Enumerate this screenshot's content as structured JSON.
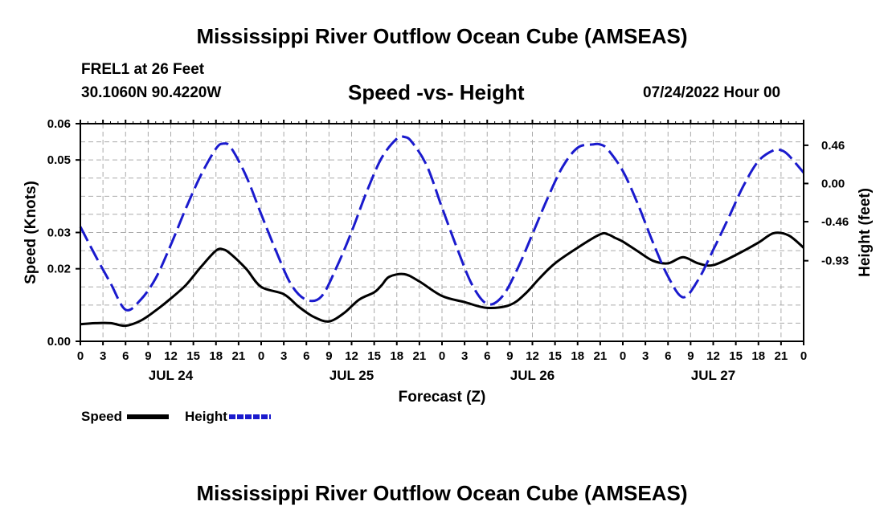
{
  "header": {
    "title": "Mississippi River Outflow Ocean Cube (AMSEAS)",
    "station": "FREL1 at 26 Feet",
    "coords": "30.1060N  90.4220W",
    "subtitle": "Speed -vs- Height",
    "datetime": "07/24/2022 Hour 00",
    "bottom_title": "Mississippi River Outflow Ocean Cube (AMSEAS)"
  },
  "legend": {
    "speed_label": "Speed",
    "height_label": "Height"
  },
  "colors": {
    "speed": "#000000",
    "height": "#1a1acd",
    "grid": "#aaaaaa"
  },
  "chart_data": {
    "type": "line",
    "title": "Speed -vs- Height",
    "xlabel": "Forecast (Z)",
    "ylabel": "Speed (Knots)",
    "y2label": "Height (feet)",
    "x_range": [
      0,
      96
    ],
    "xticks": [
      0,
      3,
      6,
      9,
      12,
      15,
      18,
      21,
      24,
      27,
      30,
      33,
      36,
      39,
      42,
      45,
      48,
      51,
      54,
      57,
      60,
      63,
      66,
      69,
      72,
      75,
      78,
      81,
      84,
      87,
      90,
      93,
      96
    ],
    "xtick_labels": [
      "0",
      "3",
      "6",
      "9",
      "12",
      "15",
      "18",
      "21",
      "0",
      "3",
      "6",
      "9",
      "12",
      "15",
      "18",
      "21",
      "0",
      "3",
      "6",
      "9",
      "12",
      "15",
      "18",
      "21",
      "0",
      "3",
      "6",
      "9",
      "12",
      "15",
      "18",
      "21",
      "0"
    ],
    "day_labels": [
      {
        "label": "JUL 24",
        "x": 12
      },
      {
        "label": "JUL 25",
        "x": 36
      },
      {
        "label": "JUL 26",
        "x": 60
      },
      {
        "label": "JUL 27",
        "x": 84
      }
    ],
    "ylim": [
      0,
      0.06
    ],
    "yticks": [
      0.0,
      0.02,
      0.03,
      0.05,
      0.06
    ],
    "ytick_labels": [
      "0.00",
      "0.02",
      "0.03",
      "0.05",
      "0.06"
    ],
    "ylim2": [
      -1.9,
      0.72
    ],
    "yticks2": [
      -0.93,
      -0.46,
      0.0,
      0.46
    ],
    "ytick2_labels": [
      "-0.93",
      "-0.46",
      "0.00",
      "0.46"
    ],
    "series": [
      {
        "name": "Speed",
        "axis": "left",
        "style": "solid",
        "x": [
          0,
          2,
          4,
          6,
          8,
          10,
          12,
          14,
          16,
          18,
          19,
          20,
          22,
          24,
          27,
          29,
          31,
          33,
          35,
          37,
          39,
          40,
          41,
          43,
          45,
          48,
          51,
          54,
          57,
          59,
          61,
          63,
          66,
          69,
          70,
          71,
          72,
          74,
          76,
          78,
          80,
          82,
          84,
          87,
          90,
          92,
          94,
          96
        ],
        "values": [
          0.0047,
          0.005,
          0.005,
          0.0043,
          0.0057,
          0.0085,
          0.0118,
          0.0155,
          0.0205,
          0.025,
          0.0253,
          0.024,
          0.02,
          0.015,
          0.013,
          0.0095,
          0.0067,
          0.0055,
          0.0078,
          0.0115,
          0.0135,
          0.0155,
          0.0178,
          0.0185,
          0.0165,
          0.0125,
          0.0108,
          0.0092,
          0.01,
          0.013,
          0.0175,
          0.0215,
          0.0258,
          0.0295,
          0.0295,
          0.0285,
          0.0275,
          0.0248,
          0.0222,
          0.0215,
          0.0232,
          0.0215,
          0.021,
          0.0238,
          0.0272,
          0.0298,
          0.0292,
          0.0258
        ]
      },
      {
        "name": "Height",
        "axis": "right",
        "style": "dashed",
        "x": [
          0,
          2,
          4,
          6,
          8,
          10,
          12,
          14,
          16,
          18,
          19,
          20,
          22,
          24,
          26,
          28,
          30,
          32,
          34,
          36,
          38,
          40,
          42,
          43,
          44,
          46,
          48,
          50,
          52,
          54,
          56,
          58,
          60,
          62,
          64,
          66,
          68,
          69,
          70,
          72,
          74,
          76,
          78,
          80,
          82,
          84,
          86,
          88,
          90,
          92,
          93,
          94,
          96
        ],
        "values": [
          -0.52,
          -0.87,
          -1.2,
          -1.52,
          -1.4,
          -1.14,
          -0.74,
          -0.3,
          0.1,
          0.42,
          0.48,
          0.43,
          0.09,
          -0.37,
          -0.82,
          -1.22,
          -1.4,
          -1.36,
          -1.01,
          -0.58,
          -0.1,
          0.31,
          0.54,
          0.56,
          0.5,
          0.21,
          -0.29,
          -0.78,
          -1.22,
          -1.45,
          -1.36,
          -1.03,
          -0.61,
          -0.18,
          0.2,
          0.43,
          0.47,
          0.47,
          0.41,
          0.15,
          -0.25,
          -0.71,
          -1.12,
          -1.37,
          -1.16,
          -0.8,
          -0.42,
          -0.03,
          0.27,
          0.4,
          0.4,
          0.34,
          0.13
        ]
      }
    ]
  }
}
